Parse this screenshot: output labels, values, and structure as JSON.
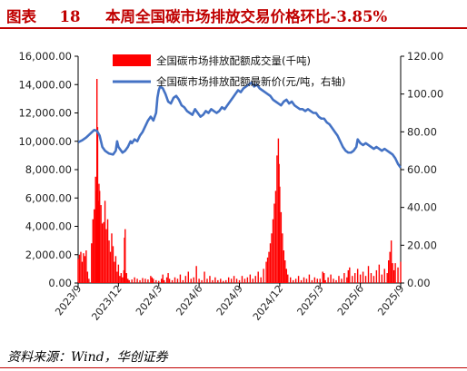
{
  "figure": {
    "number_label": "图表",
    "number": "18",
    "title": "本周全国碳市场排放交易价格环比-3.85%"
  },
  "source": "资料来源：Wind，华创证券",
  "chart_data": {
    "type": "bar+line",
    "title": "本周全国碳市场排放交易价格环比-3.85%",
    "left_axis": {
      "ylim": [
        0,
        16000
      ],
      "tick_labels": [
        "0.00",
        "2,000.00",
        "4,000.00",
        "6,000.00",
        "8,000.00",
        "10,000.00",
        "12,000.00",
        "14,000.00",
        "16,000.00"
      ]
    },
    "right_axis": {
      "ylim": [
        0,
        120
      ],
      "tick_labels": [
        "0.00",
        "20.00",
        "40.00",
        "60.00",
        "80.00",
        "100.00",
        "120.00"
      ]
    },
    "x_axis": {
      "range": [
        "2023-09",
        "2025-09"
      ],
      "tick_labels": [
        "2023/9",
        "2023/12",
        "2024/3",
        "2024/6",
        "2024/9",
        "2024/12",
        "2025/3",
        "2025/6",
        "2025/9"
      ],
      "tick_positions_month": [
        0,
        3,
        6,
        9,
        12,
        15,
        18,
        21,
        24
      ]
    },
    "legend": {
      "placement": "top-center"
    },
    "series": [
      {
        "name": "全国碳市场排放配额成交量(千吨)",
        "type": "bar",
        "axis": "left",
        "color": "#ff0000",
        "points": [
          [
            0.0,
            1700
          ],
          [
            0.1,
            2000
          ],
          [
            0.2,
            2200
          ],
          [
            0.3,
            1500
          ],
          [
            0.4,
            2100
          ],
          [
            0.5,
            1900
          ],
          [
            0.6,
            2300
          ],
          [
            0.7,
            800
          ],
          [
            0.8,
            300
          ],
          [
            1.0,
            2800
          ],
          [
            1.1,
            4500
          ],
          [
            1.2,
            5200
          ],
          [
            1.3,
            7500
          ],
          [
            1.35,
            6500
          ],
          [
            1.4,
            14400
          ],
          [
            1.45,
            11000
          ],
          [
            1.5,
            5800
          ],
          [
            1.55,
            7000
          ],
          [
            1.6,
            6500
          ],
          [
            1.7,
            5500
          ],
          [
            1.8,
            4200
          ],
          [
            1.9,
            4300
          ],
          [
            2.0,
            5800
          ],
          [
            2.1,
            3800
          ],
          [
            2.2,
            4500
          ],
          [
            2.3,
            3000
          ],
          [
            2.4,
            2200
          ],
          [
            2.5,
            3500
          ],
          [
            2.6,
            2600
          ],
          [
            2.7,
            1500
          ],
          [
            2.8,
            1900
          ],
          [
            2.9,
            800
          ],
          [
            3.0,
            1300
          ],
          [
            3.1,
            500
          ],
          [
            3.2,
            700
          ],
          [
            3.3,
            400
          ],
          [
            3.4,
            900
          ],
          [
            3.45,
            3200
          ],
          [
            3.5,
            3800
          ],
          [
            3.6,
            700
          ],
          [
            3.7,
            300
          ],
          [
            3.8,
            200
          ],
          [
            4.0,
            250
          ],
          [
            4.2,
            400
          ],
          [
            4.4,
            300
          ],
          [
            4.6,
            200
          ],
          [
            4.8,
            350
          ],
          [
            5.0,
            300
          ],
          [
            5.2,
            250
          ],
          [
            5.4,
            500
          ],
          [
            5.5,
            400
          ],
          [
            5.6,
            300
          ],
          [
            5.8,
            200
          ],
          [
            6.0,
            150
          ],
          [
            6.2,
            300
          ],
          [
            6.3,
            600
          ],
          [
            6.4,
            200
          ],
          [
            6.6,
            400
          ],
          [
            6.7,
            700
          ],
          [
            6.8,
            300
          ],
          [
            7.0,
            200
          ],
          [
            7.2,
            400
          ],
          [
            7.4,
            300
          ],
          [
            7.6,
            600
          ],
          [
            7.8,
            200
          ],
          [
            8.0,
            500
          ],
          [
            8.2,
            800
          ],
          [
            8.4,
            300
          ],
          [
            8.6,
            400
          ],
          [
            8.8,
            1200
          ],
          [
            9.0,
            300
          ],
          [
            9.2,
            200
          ],
          [
            9.4,
            800
          ],
          [
            9.6,
            300
          ],
          [
            9.8,
            500
          ],
          [
            10.0,
            200
          ],
          [
            10.2,
            400
          ],
          [
            10.4,
            200
          ],
          [
            10.6,
            300
          ],
          [
            10.8,
            150
          ],
          [
            11.0,
            200
          ],
          [
            11.2,
            400
          ],
          [
            11.4,
            300
          ],
          [
            11.6,
            500
          ],
          [
            11.8,
            300
          ],
          [
            12.0,
            200
          ],
          [
            12.2,
            500
          ],
          [
            12.4,
            300
          ],
          [
            12.6,
            400
          ],
          [
            12.8,
            600
          ],
          [
            13.0,
            300
          ],
          [
            13.2,
            500
          ],
          [
            13.4,
            800
          ],
          [
            13.6,
            400
          ],
          [
            13.8,
            1000
          ],
          [
            14.0,
            1500
          ],
          [
            14.1,
            1800
          ],
          [
            14.2,
            2200
          ],
          [
            14.3,
            2800
          ],
          [
            14.4,
            3500
          ],
          [
            14.5,
            4500
          ],
          [
            14.6,
            5600
          ],
          [
            14.7,
            6500
          ],
          [
            14.8,
            9000
          ],
          [
            14.9,
            10200
          ],
          [
            14.95,
            8400
          ],
          [
            15.0,
            6800
          ],
          [
            15.1,
            5000
          ],
          [
            15.2,
            3500
          ],
          [
            15.3,
            2300
          ],
          [
            15.4,
            1600
          ],
          [
            15.5,
            1000
          ],
          [
            15.6,
            600
          ],
          [
            15.8,
            400
          ],
          [
            16.0,
            200
          ],
          [
            16.2,
            300
          ],
          [
            16.4,
            500
          ],
          [
            16.6,
            200
          ],
          [
            16.8,
            400
          ],
          [
            17.0,
            300
          ],
          [
            17.2,
            600
          ],
          [
            17.4,
            200
          ],
          [
            17.6,
            400
          ],
          [
            17.8,
            300
          ],
          [
            18.0,
            300
          ],
          [
            18.2,
            800
          ],
          [
            18.3,
            700
          ],
          [
            18.4,
            200
          ],
          [
            18.6,
            400
          ],
          [
            18.8,
            600
          ],
          [
            19.0,
            300
          ],
          [
            19.2,
            200
          ],
          [
            19.4,
            500
          ],
          [
            19.6,
            300
          ],
          [
            19.8,
            700
          ],
          [
            20.0,
            400
          ],
          [
            20.1,
            900
          ],
          [
            20.2,
            1100
          ],
          [
            20.4,
            500
          ],
          [
            20.6,
            700
          ],
          [
            20.8,
            1000
          ],
          [
            21.0,
            600
          ],
          [
            21.2,
            800
          ],
          [
            21.4,
            500
          ],
          [
            21.6,
            1200
          ],
          [
            21.8,
            700
          ],
          [
            22.0,
            500
          ],
          [
            22.2,
            900
          ],
          [
            22.4,
            1300
          ],
          [
            22.6,
            600
          ],
          [
            22.8,
            1000
          ],
          [
            23.0,
            700
          ],
          [
            23.1,
            1600
          ],
          [
            23.2,
            2200
          ],
          [
            23.3,
            3000
          ],
          [
            23.4,
            1400
          ],
          [
            23.5,
            900
          ],
          [
            23.6,
            1400
          ],
          [
            23.8,
            1100
          ],
          [
            24.0,
            1500
          ]
        ]
      },
      {
        "name": "全国碳市场排放配额最新价(元/吨，右轴)",
        "type": "line",
        "axis": "right",
        "color": "#4472c4",
        "points": [
          [
            0.0,
            74.5
          ],
          [
            0.3,
            75.5
          ],
          [
            0.6,
            77
          ],
          [
            0.9,
            79
          ],
          [
            1.2,
            81
          ],
          [
            1.4,
            80.5
          ],
          [
            1.6,
            78
          ],
          [
            1.8,
            72
          ],
          [
            2.0,
            70
          ],
          [
            2.3,
            68.5
          ],
          [
            2.6,
            68
          ],
          [
            2.8,
            70
          ],
          [
            2.9,
            75
          ],
          [
            3.0,
            72
          ],
          [
            3.1,
            71
          ],
          [
            3.3,
            69
          ],
          [
            3.5,
            70
          ],
          [
            3.7,
            72
          ],
          [
            3.9,
            75
          ],
          [
            4.0,
            74
          ],
          [
            4.2,
            76
          ],
          [
            4.4,
            75
          ],
          [
            4.6,
            78
          ],
          [
            4.8,
            80
          ],
          [
            5.0,
            83
          ],
          [
            5.2,
            86
          ],
          [
            5.4,
            88
          ],
          [
            5.6,
            86
          ],
          [
            5.8,
            90
          ],
          [
            5.9,
            98
          ],
          [
            6.0,
            102
          ],
          [
            6.1,
            104
          ],
          [
            6.3,
            103
          ],
          [
            6.5,
            100
          ],
          [
            6.7,
            96
          ],
          [
            6.9,
            95
          ],
          [
            7.1,
            98
          ],
          [
            7.3,
            99
          ],
          [
            7.5,
            97
          ],
          [
            7.7,
            94
          ],
          [
            7.9,
            93
          ],
          [
            8.1,
            91
          ],
          [
            8.3,
            90
          ],
          [
            8.5,
            89
          ],
          [
            8.7,
            92
          ],
          [
            8.9,
            90
          ],
          [
            9.1,
            88
          ],
          [
            9.3,
            89
          ],
          [
            9.5,
            91
          ],
          [
            9.7,
            90
          ],
          [
            9.9,
            92
          ],
          [
            10.1,
            91
          ],
          [
            10.3,
            90
          ],
          [
            10.5,
            91
          ],
          [
            10.7,
            93
          ],
          [
            10.9,
            92
          ],
          [
            11.1,
            94
          ],
          [
            11.3,
            96
          ],
          [
            11.5,
            98
          ],
          [
            11.7,
            100
          ],
          [
            11.9,
            102
          ],
          [
            12.1,
            101
          ],
          [
            12.3,
            103
          ],
          [
            12.5,
            104
          ],
          [
            12.7,
            105
          ],
          [
            12.9,
            106
          ],
          [
            13.1,
            104
          ],
          [
            13.3,
            105
          ],
          [
            13.5,
            103
          ],
          [
            13.7,
            102
          ],
          [
            13.9,
            101
          ],
          [
            14.1,
            100
          ],
          [
            14.3,
            99
          ],
          [
            14.5,
            97
          ],
          [
            14.7,
            96
          ],
          [
            14.9,
            95
          ],
          [
            15.1,
            94
          ],
          [
            15.3,
            96
          ],
          [
            15.5,
            97
          ],
          [
            15.7,
            95
          ],
          [
            15.9,
            96
          ],
          [
            16.1,
            94
          ],
          [
            16.3,
            93
          ],
          [
            16.5,
            92
          ],
          [
            16.7,
            92
          ],
          [
            16.9,
            91
          ],
          [
            17.1,
            92
          ],
          [
            17.3,
            91
          ],
          [
            17.5,
            90
          ],
          [
            17.7,
            90
          ],
          [
            17.9,
            88
          ],
          [
            18.1,
            87
          ],
          [
            18.3,
            87
          ],
          [
            18.5,
            85
          ],
          [
            18.7,
            84
          ],
          [
            18.9,
            82
          ],
          [
            19.1,
            80
          ],
          [
            19.3,
            78
          ],
          [
            19.5,
            75
          ],
          [
            19.7,
            72
          ],
          [
            19.9,
            70
          ],
          [
            20.1,
            69
          ],
          [
            20.3,
            69
          ],
          [
            20.5,
            70
          ],
          [
            20.7,
            72
          ],
          [
            20.8,
            76
          ],
          [
            21.0,
            74
          ],
          [
            21.2,
            73
          ],
          [
            21.4,
            74
          ],
          [
            21.6,
            73
          ],
          [
            21.8,
            72
          ],
          [
            22.0,
            71
          ],
          [
            22.2,
            72
          ],
          [
            22.4,
            71
          ],
          [
            22.6,
            70
          ],
          [
            22.8,
            71
          ],
          [
            23.0,
            70
          ],
          [
            23.2,
            69
          ],
          [
            23.4,
            68
          ],
          [
            23.6,
            66
          ],
          [
            23.8,
            63
          ],
          [
            24.0,
            61
          ]
        ]
      }
    ]
  }
}
